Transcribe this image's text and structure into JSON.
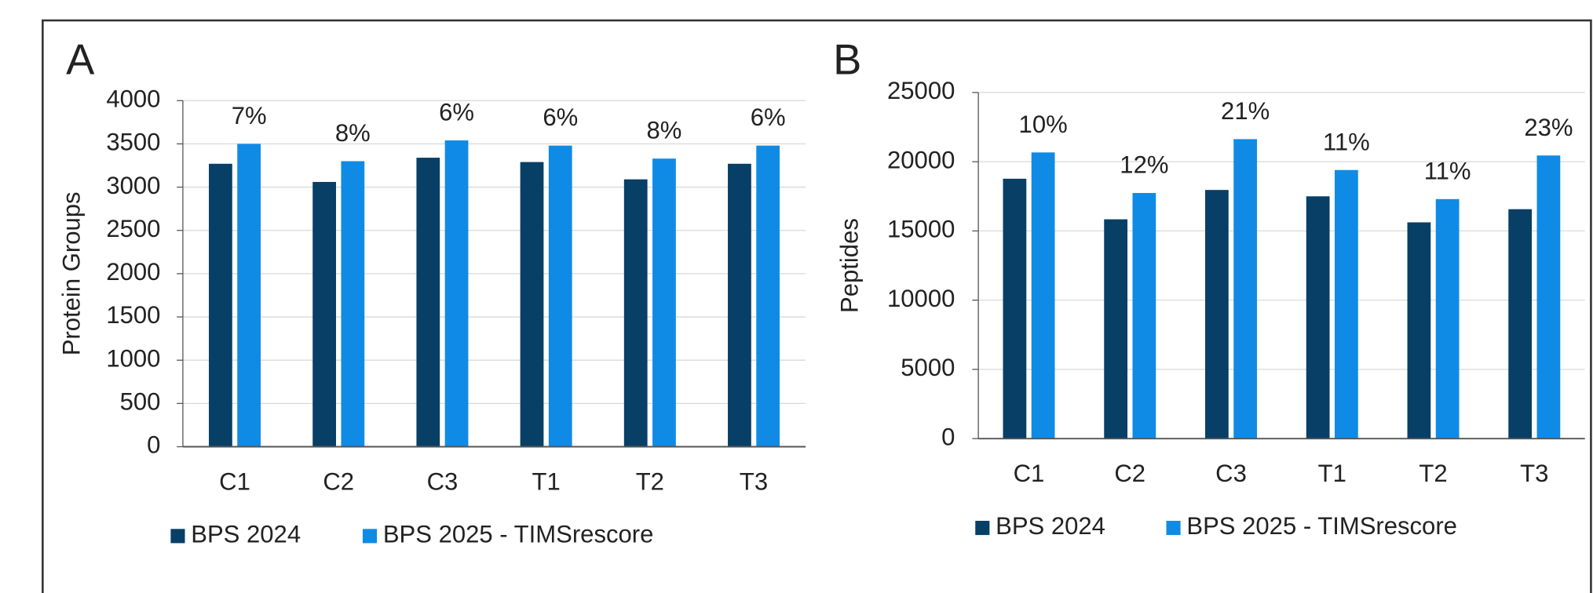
{
  "chart_data": [
    {
      "type": "bar",
      "title": "A",
      "y_label": "Protein Groups",
      "categories": [
        "C1",
        "C2",
        "C3",
        "T1",
        "T2",
        "T3"
      ],
      "series": [
        {
          "name": "BPS 2024",
          "color": "#073f66",
          "values": [
            3270,
            3060,
            3340,
            3290,
            3090,
            3270
          ]
        },
        {
          "name": "BPS 2025 - TIMSrescore",
          "color": "#0f8be6",
          "values": [
            3500,
            3300,
            3540,
            3480,
            3330,
            3480
          ]
        }
      ],
      "annotations": [
        "7%",
        "8%",
        "6%",
        "6%",
        "8%",
        "6%"
      ],
      "ylim": [
        0,
        4000
      ],
      "yticks": [
        0,
        500,
        1000,
        1500,
        2000,
        2500,
        3000,
        3500,
        4000
      ],
      "grid": true
    },
    {
      "type": "bar",
      "title": "B",
      "y_label": "Peptides",
      "categories": [
        "C1",
        "C2",
        "C3",
        "T1",
        "T2",
        "T3"
      ],
      "series": [
        {
          "name": "BPS 2024",
          "color": "#073f66",
          "values": [
            18770,
            15840,
            17960,
            17500,
            15620,
            16570
          ]
        },
        {
          "name": "BPS 2025 - TIMSrescore",
          "color": "#0f8be6",
          "values": [
            20670,
            17740,
            21630,
            19400,
            17300,
            20450
          ]
        }
      ],
      "annotations": [
        "10%",
        "12%",
        "21%",
        "11%",
        "11%",
        "23%"
      ],
      "ylim": [
        0,
        25000
      ],
      "yticks": [
        0,
        5000,
        10000,
        15000,
        20000,
        25000
      ],
      "grid": true
    }
  ]
}
